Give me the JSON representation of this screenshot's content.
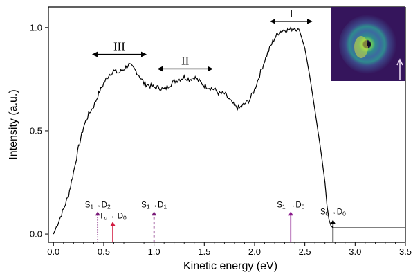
{
  "chart_data": {
    "type": "line",
    "xlabel": "Kinetic energy (eV)",
    "ylabel": "Intensity (a.u.)",
    "xlim": [
      -0.05,
      3.5
    ],
    "ylim": [
      -0.04,
      1.1
    ],
    "grid": false,
    "x_ticks": [
      0.0,
      0.5,
      1.0,
      1.5,
      2.0,
      2.5,
      3.0,
      3.5
    ],
    "x_tick_labels": [
      "0.0",
      "0.5",
      "1.0",
      "1.5",
      "2.0",
      "2.5",
      "3.0",
      "3.5"
    ],
    "y_ticks": [
      0.0,
      0.5,
      1.0
    ],
    "y_tick_labels": [
      "0.0",
      "0.5",
      "1.0"
    ],
    "series": [
      {
        "color": "#000000",
        "x": [
          0.0,
          0.05,
          0.1,
          0.15,
          0.2,
          0.25,
          0.3,
          0.35,
          0.4,
          0.45,
          0.5,
          0.55,
          0.6,
          0.65,
          0.7,
          0.75,
          0.8,
          0.85,
          0.9,
          0.95,
          1.0,
          1.05,
          1.1,
          1.15,
          1.2,
          1.25,
          1.3,
          1.35,
          1.4,
          1.45,
          1.5,
          1.55,
          1.6,
          1.65,
          1.7,
          1.75,
          1.8,
          1.85,
          1.9,
          1.95,
          2.0,
          2.05,
          2.1,
          2.15,
          2.2,
          2.25,
          2.3,
          2.35,
          2.4,
          2.45,
          2.5,
          2.55,
          2.6,
          2.63,
          2.66,
          2.7,
          2.72,
          2.74,
          2.76,
          2.78,
          2.8,
          2.85,
          2.9,
          3.0,
          3.5
        ],
        "y": [
          0.0,
          0.06,
          0.12,
          0.19,
          0.3,
          0.42,
          0.52,
          0.58,
          0.62,
          0.68,
          0.73,
          0.77,
          0.79,
          0.78,
          0.8,
          0.82,
          0.8,
          0.77,
          0.73,
          0.72,
          0.71,
          0.71,
          0.7,
          0.72,
          0.74,
          0.75,
          0.76,
          0.75,
          0.76,
          0.74,
          0.72,
          0.71,
          0.7,
          0.68,
          0.68,
          0.65,
          0.62,
          0.61,
          0.63,
          0.65,
          0.7,
          0.77,
          0.84,
          0.9,
          0.95,
          0.98,
          0.99,
          0.99,
          1.0,
          0.98,
          0.9,
          0.76,
          0.6,
          0.5,
          0.4,
          0.25,
          0.14,
          0.07,
          0.04,
          0.03,
          0.03,
          0.03,
          0.03,
          0.03,
          0.03
        ]
      }
    ],
    "annotations": {
      "regions": [
        {
          "label": "III",
          "x_start": 0.39,
          "x_end": 0.92,
          "y": 0.87
        },
        {
          "label": "II",
          "x_start": 1.04,
          "x_end": 1.58,
          "y": 0.8
        },
        {
          "label": "I",
          "x_start": 2.16,
          "x_end": 2.57,
          "y": 1.03
        }
      ],
      "transitions": [
        {
          "label_main": "S",
          "sub1": "1",
          "arrow": "→D",
          "sub2": "2",
          "x": 0.44,
          "y_top": 0.11,
          "color": "#7a1a78",
          "style": "dotted",
          "label_y": 0.13
        },
        {
          "label_main": "T",
          "sub1": "p",
          "arrow": "→ D",
          "sub2": "0",
          "x": 0.59,
          "y_top": 0.06,
          "color": "#d21b40",
          "style": "solid",
          "label_y": 0.075
        },
        {
          "label_main": "S",
          "sub1": "1",
          "arrow": "→D",
          "sub2": "1",
          "x": 1.0,
          "y_top": 0.11,
          "color": "#7a1a78",
          "style": "dashed",
          "label_y": 0.13
        },
        {
          "label_main": "S",
          "sub1": "1",
          "arrow": " →D",
          "sub2": "0",
          "x": 2.36,
          "y_top": 0.11,
          "color": "#8a1a8c",
          "style": "solid",
          "label_y": 0.13
        },
        {
          "label_main": "S",
          "sub1": "0",
          "arrow": "→D",
          "sub2": "0",
          "x": 2.78,
          "y_top": 0.07,
          "color": "#000000",
          "style": "solid",
          "label_y": 0.095
        }
      ]
    },
    "inset": {
      "type": "image",
      "description_colors": [
        "#35155c",
        "#3c4a8a",
        "#2f8a8e",
        "#6ccd5a",
        "#d9e33a"
      ],
      "arrow_color": "#e9d9f0"
    }
  }
}
